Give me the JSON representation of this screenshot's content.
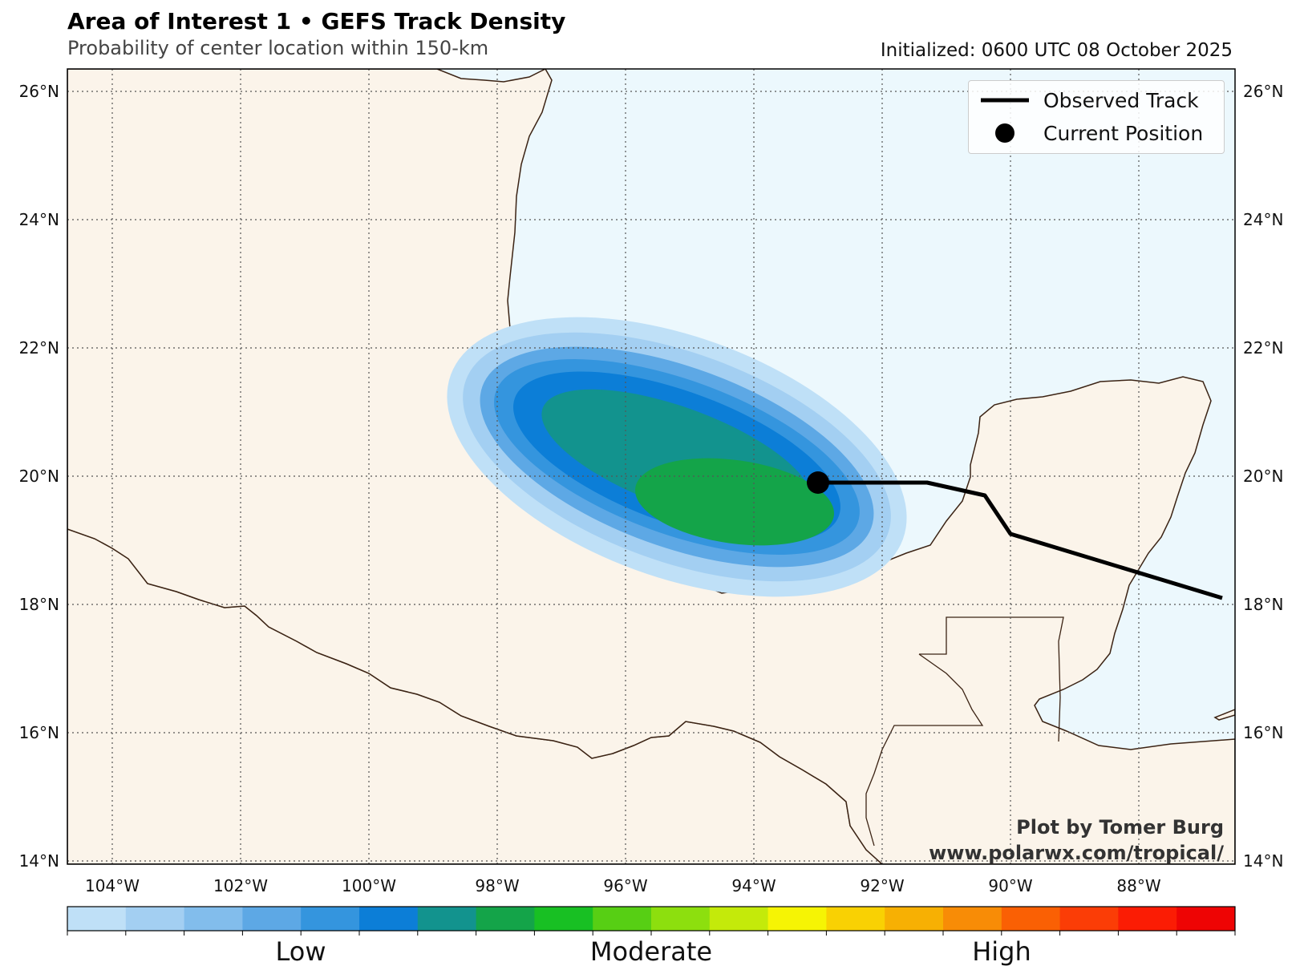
{
  "header": {
    "title": "Area of Interest 1 • GEFS Track Density",
    "subtitle": "Probability of center location within 150-km",
    "initialized": "Initialized: 0600 UTC 08 October 2025"
  },
  "map": {
    "lat_ticks": [
      "26°N",
      "24°N",
      "22°N",
      "20°N",
      "18°N",
      "16°N",
      "14°N"
    ],
    "lon_ticks": [
      "104°W",
      "102°W",
      "100°W",
      "98°W",
      "96°W",
      "94°W",
      "92°W",
      "90°W",
      "88°W"
    ],
    "colors": {
      "ocean": "#ecf8fd",
      "land": "#fbf4ea",
      "coast": "#3b2314",
      "grid": "#555555"
    },
    "current_position": {
      "lon": -93.0,
      "lat": 19.9
    },
    "observed_track": [
      {
        "lon": -86.7,
        "lat": 18.1
      },
      {
        "lon": -90.0,
        "lat": 19.1
      },
      {
        "lon": -90.4,
        "lat": 19.7
      },
      {
        "lon": -91.3,
        "lat": 19.9
      },
      {
        "lon": -93.0,
        "lat": 19.9
      }
    ],
    "density_levels": [
      "low",
      "low",
      "low",
      "low",
      "low",
      "low",
      "moderate",
      "moderate"
    ]
  },
  "legend": {
    "observed_track": "Observed Track",
    "current_position": "Current Position"
  },
  "credit": {
    "line1": "Plot by Tomer Burg",
    "line2": "www.polarwx.com/tropical/"
  },
  "colorbar": {
    "colors": [
      "#bfe0f7",
      "#a3cff2",
      "#82bdec",
      "#5da8e5",
      "#3495de",
      "#0c7ed7",
      "#12938e",
      "#14a449",
      "#18c023",
      "#57cf14",
      "#8ddf0e",
      "#c4ea0a",
      "#f6f404",
      "#f9d103",
      "#f7b003",
      "#f88c06",
      "#fa6004",
      "#fb3d06",
      "#fb1c04",
      "#ee0404"
    ],
    "labels": [
      "Low",
      "Moderate",
      "High"
    ]
  }
}
